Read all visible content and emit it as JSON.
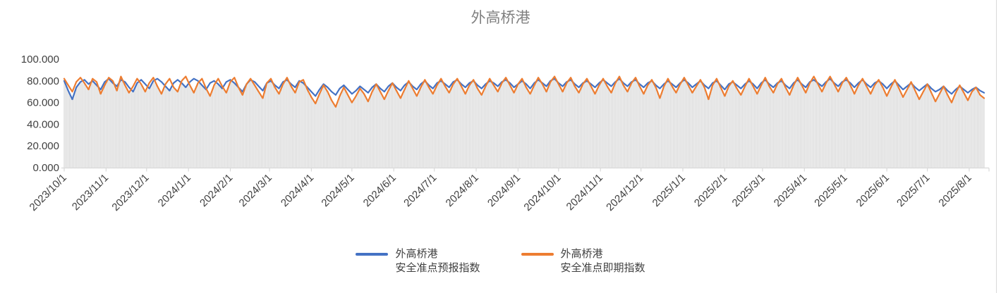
{
  "colors": {
    "title": "#808080",
    "axis_labels": "#404040",
    "axis_line": "#D9D9D9",
    "bars": "#DBDBDB",
    "edge_line": "#D9D9D9"
  },
  "chart_data": {
    "type": "line",
    "title": "外高桥港",
    "grid": "off",
    "legend_position": "bottom",
    "ylim": [
      0,
      100
    ],
    "y_tick_labels": [
      "0.000",
      "20.000",
      "40.000",
      "60.000",
      "80.000",
      "100.000"
    ],
    "x_tick_labels": [
      "2023/10/1",
      "2023/11/1",
      "2023/12/1",
      "2024/1/1",
      "2024/2/1",
      "2024/3/1",
      "2024/4/1",
      "2024/5/1",
      "2024/6/1",
      "2024/7/1",
      "2024/8/1",
      "2024/9/1",
      "2024/10/1",
      "2024/11/1",
      "2024/12/1",
      "2025/1/1",
      "2025/2/1",
      "2025/3/1",
      "2025/4/1",
      "2025/5/1",
      "2025/6/1",
      "2025/7/1",
      "2025/8/1"
    ],
    "x_start": "2023/10/1",
    "point_interval_days": 3,
    "drop_bars_color": "#DBDBDB",
    "series": [
      {
        "name": "外高桥港\n安全准点预报指数",
        "color": "#4472C4",
        "values": [
          80,
          71,
          63,
          74,
          79,
          81,
          77,
          80,
          76,
          72,
          79,
          82,
          78,
          75,
          81,
          79,
          74,
          70,
          78,
          81,
          77,
          73,
          80,
          82,
          79,
          75,
          71,
          78,
          81,
          78,
          74,
          79,
          82,
          80,
          76,
          72,
          78,
          80,
          77,
          73,
          79,
          81,
          78,
          74,
          70,
          77,
          81,
          79,
          75,
          71,
          78,
          80,
          76,
          73,
          79,
          81,
          77,
          74,
          80,
          78,
          74,
          70,
          66,
          72,
          77,
          74,
          70,
          67,
          73,
          76,
          72,
          68,
          71,
          75,
          72,
          69,
          74,
          77,
          73,
          70,
          75,
          78,
          74,
          71,
          76,
          79,
          75,
          72,
          77,
          80,
          76,
          73,
          78,
          80,
          77,
          74,
          79,
          81,
          77,
          74,
          78,
          80,
          76,
          73,
          77,
          80,
          78,
          75,
          79,
          81,
          78,
          74,
          77,
          80,
          77,
          73,
          78,
          81,
          78,
          75,
          80,
          82,
          78,
          75,
          79,
          81,
          77,
          74,
          78,
          80,
          77,
          74,
          78,
          81,
          78,
          75,
          79,
          82,
          78,
          75,
          79,
          81,
          77,
          74,
          78,
          80,
          76,
          73,
          77,
          80,
          77,
          74,
          78,
          81,
          78,
          74,
          77,
          80,
          76,
          73,
          78,
          80,
          76,
          72,
          77,
          79,
          76,
          73,
          77,
          80,
          77,
          73,
          78,
          81,
          77,
          74,
          78,
          80,
          76,
          73,
          78,
          81,
          77,
          74,
          79,
          81,
          78,
          75,
          79,
          82,
          78,
          75,
          79,
          81,
          78,
          74,
          78,
          81,
          77,
          74,
          78,
          80,
          77,
          73,
          77,
          80,
          76,
          72,
          75,
          78,
          74,
          71,
          74,
          77,
          73,
          70,
          72,
          75,
          71,
          68,
          72,
          75,
          72,
          69,
          72,
          74,
          71,
          69
        ]
      },
      {
        "name": "外高桥港\n安全准点即期指数",
        "color": "#ED7D31",
        "values": [
          82,
          76,
          70,
          79,
          83,
          78,
          72,
          82,
          79,
          68,
          76,
          83,
          80,
          71,
          84,
          76,
          69,
          75,
          82,
          77,
          70,
          78,
          83,
          75,
          68,
          77,
          82,
          74,
          70,
          80,
          84,
          76,
          69,
          78,
          82,
          73,
          66,
          76,
          82,
          75,
          69,
          79,
          83,
          74,
          67,
          77,
          82,
          76,
          70,
          64,
          78,
          82,
          74,
          68,
          77,
          83,
          75,
          69,
          79,
          81,
          72,
          65,
          59,
          68,
          76,
          70,
          62,
          56,
          66,
          74,
          67,
          60,
          66,
          73,
          68,
          61,
          70,
          77,
          70,
          63,
          71,
          78,
          71,
          64,
          72,
          80,
          73,
          66,
          74,
          81,
          74,
          68,
          76,
          82,
          75,
          69,
          77,
          82,
          75,
          68,
          76,
          81,
          73,
          67,
          75,
          82,
          76,
          70,
          78,
          83,
          76,
          69,
          77,
          82,
          74,
          68,
          76,
          83,
          77,
          70,
          79,
          84,
          77,
          70,
          78,
          83,
          75,
          69,
          77,
          82,
          75,
          68,
          76,
          82,
          75,
          69,
          78,
          84,
          76,
          70,
          78,
          83,
          75,
          68,
          76,
          81,
          74,
          64,
          75,
          82,
          75,
          69,
          77,
          83,
          76,
          69,
          75,
          81,
          74,
          63,
          76,
          82,
          74,
          66,
          75,
          80,
          73,
          67,
          75,
          82,
          75,
          68,
          76,
          83,
          75,
          69,
          77,
          82,
          74,
          67,
          76,
          83,
          76,
          69,
          78,
          84,
          77,
          70,
          78,
          84,
          77,
          70,
          78,
          83,
          76,
          68,
          76,
          82,
          75,
          68,
          76,
          81,
          74,
          66,
          74,
          81,
          73,
          65,
          72,
          79,
          71,
          63,
          70,
          77,
          69,
          61,
          68,
          75,
          67,
          60,
          69,
          76,
          69,
          62,
          70,
          74,
          67,
          64
        ]
      }
    ]
  }
}
